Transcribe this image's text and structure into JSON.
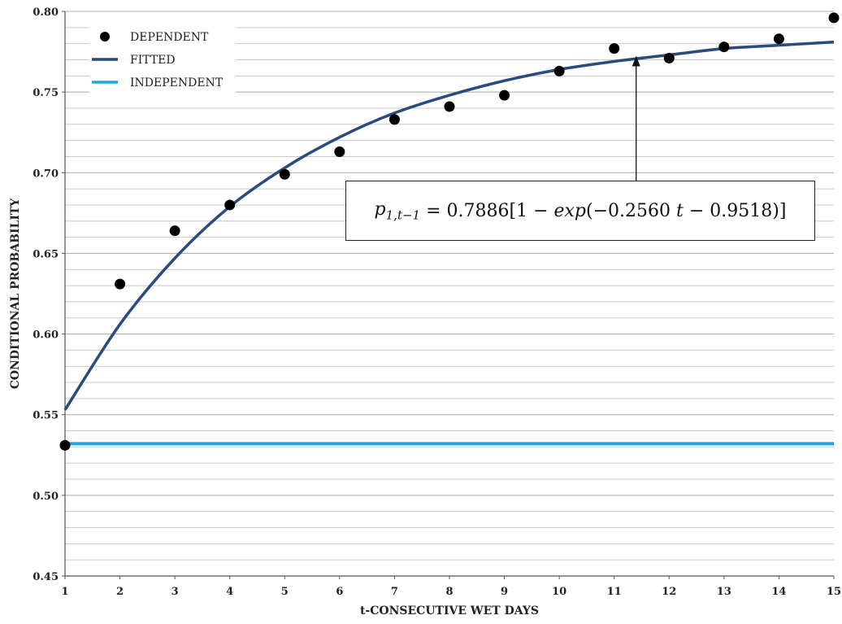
{
  "chart_data": {
    "type": "scatter",
    "title": "",
    "xlabel": "t-CONSECUTIVE WET DAYS",
    "ylabel": "CONDITIONAL PROBABILITY",
    "xlim": [
      1,
      15
    ],
    "ylim": [
      0.45,
      0.8
    ],
    "xticks": [
      "1",
      "2",
      "3",
      "4",
      "5",
      "6",
      "7",
      "8",
      "9",
      "10",
      "11",
      "12",
      "13",
      "14",
      "15"
    ],
    "yticks": [
      "0.45",
      "0.50",
      "0.55",
      "0.60",
      "0.65",
      "0.70",
      "0.75",
      "0.80"
    ],
    "grid": true,
    "legend_position": "top-left",
    "series": [
      {
        "name": "DEPENDENT",
        "kind": "points",
        "color": "#000000",
        "x": [
          1,
          2,
          3,
          4,
          5,
          6,
          7,
          8,
          9,
          10,
          11,
          12,
          13,
          14,
          15
        ],
        "y": [
          0.531,
          0.631,
          0.664,
          0.68,
          0.699,
          0.713,
          0.733,
          0.741,
          0.748,
          0.763,
          0.777,
          0.771,
          0.778,
          0.783,
          0.796
        ]
      },
      {
        "name": "FITTED",
        "kind": "curve",
        "color": "#2b4a7e",
        "x": [
          1,
          2,
          3,
          4,
          5,
          6,
          7,
          8,
          9,
          10,
          11,
          12,
          13,
          14,
          15
        ],
        "y": [
          0.553,
          0.606,
          0.647,
          0.679,
          0.703,
          0.722,
          0.737,
          0.748,
          0.757,
          0.764,
          0.769,
          0.773,
          0.777,
          0.779,
          0.781
        ]
      },
      {
        "name": "INDEPENDENT",
        "kind": "line",
        "color": "#1aa7dc",
        "x": [
          1,
          15
        ],
        "y": [
          0.532,
          0.532
        ]
      }
    ],
    "annotation": {
      "text_lhs": "p",
      "text_sub": "1,t−1",
      "text_rhs_prefix": " = 0.7886[1 − ",
      "text_exp": "exp",
      "text_rhs_suffix": "(−0.2560 ",
      "text_t": "t",
      "text_end": " − 0.9518)]",
      "arrow_x": 11.4,
      "arrow_y": 0.773
    }
  }
}
